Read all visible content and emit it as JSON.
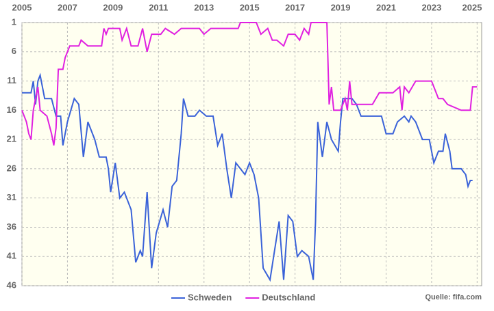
{
  "chart_data": {
    "type": "line",
    "y_inverted": true,
    "grid": true,
    "legend": "bottom",
    "source": "Quelle: fifa.com",
    "xlim": [
      2005,
      2025.2
    ],
    "xticks": [
      2005,
      2007,
      2009,
      2011,
      2013,
      2015,
      2017,
      2019,
      2021,
      2023,
      2025
    ],
    "ylim": [
      1,
      46
    ],
    "yticks": [
      1,
      6,
      11,
      16,
      21,
      26,
      31,
      36,
      41,
      46
    ],
    "series": [
      {
        "name": "Schweden",
        "color": "#3a62d8",
        "x": [
          2005.0,
          2005.4,
          2005.5,
          2005.6,
          2005.7,
          2005.8,
          2006.0,
          2006.3,
          2006.5,
          2006.7,
          2006.8,
          2007.0,
          2007.3,
          2007.5,
          2007.7,
          2007.9,
          2008.2,
          2008.4,
          2008.7,
          2008.8,
          2008.9,
          2009.1,
          2009.3,
          2009.5,
          2009.8,
          2010.0,
          2010.2,
          2010.3,
          2010.5,
          2010.7,
          2010.9,
          2011.2,
          2011.4,
          2011.6,
          2011.8,
          2012.0,
          2012.1,
          2012.3,
          2012.6,
          2012.8,
          2013.1,
          2013.4,
          2013.6,
          2013.8,
          2014.0,
          2014.2,
          2014.4,
          2014.6,
          2014.8,
          2015.0,
          2015.2,
          2015.4,
          2015.6,
          2015.9,
          2016.1,
          2016.3,
          2016.5,
          2016.7,
          2016.9,
          2017.1,
          2017.3,
          2017.6,
          2017.8,
          2017.9,
          2018.0,
          2018.2,
          2018.4,
          2018.6,
          2018.9,
          2019.0,
          2019.1,
          2019.5,
          2019.7,
          2019.9,
          2020.3,
          2020.8,
          2021.0,
          2021.3,
          2021.5,
          2021.8,
          2022.0,
          2022.1,
          2022.3,
          2022.6,
          2022.9,
          2023.1,
          2023.3,
          2023.5,
          2023.6,
          2023.8,
          2023.9,
          2024.3,
          2024.5,
          2024.6,
          2024.7,
          2024.8
        ],
        "values": [
          13,
          13,
          11,
          15,
          11,
          10,
          14,
          14,
          17,
          17,
          22,
          18,
          14,
          15,
          24,
          18,
          21,
          24,
          24,
          26,
          30,
          25,
          31,
          30,
          33,
          42,
          40,
          41,
          30,
          43,
          37,
          33,
          36,
          29,
          28,
          20,
          14,
          17,
          17,
          16,
          17,
          17,
          22,
          20,
          26,
          31,
          25,
          26,
          27,
          25,
          27,
          31,
          43,
          45,
          40,
          35,
          45,
          34,
          35,
          41,
          40,
          41,
          45,
          35,
          18,
          24,
          18,
          21,
          23,
          18,
          14,
          14,
          15,
          17,
          17,
          17,
          20,
          20,
          18,
          17,
          18,
          17,
          18,
          21,
          21,
          25,
          23,
          23,
          20,
          23,
          26,
          26,
          27,
          29,
          28,
          28
        ]
      },
      {
        "name": "Deutschland",
        "color": "#e020e0",
        "x": [
          2005.0,
          2005.2,
          2005.3,
          2005.4,
          2005.5,
          2005.7,
          2005.8,
          2006.1,
          2006.3,
          2006.4,
          2006.5,
          2006.6,
          2006.8,
          2006.9,
          2007.1,
          2007.5,
          2007.6,
          2007.9,
          2008.5,
          2008.6,
          2008.7,
          2008.8,
          2009.3,
          2009.4,
          2009.6,
          2009.8,
          2010.1,
          2010.3,
          2010.5,
          2010.7,
          2011.1,
          2011.3,
          2011.7,
          2012.0,
          2012.8,
          2013.0,
          2013.3,
          2014.5,
          2014.6,
          2015.3,
          2015.5,
          2015.8,
          2016.0,
          2016.2,
          2016.5,
          2016.7,
          2017.0,
          2017.2,
          2017.4,
          2017.6,
          2017.7,
          2018.4,
          2018.5,
          2018.6,
          2018.7,
          2019.0,
          2019.2,
          2019.3,
          2019.4,
          2019.5,
          2020.4,
          2020.7,
          2021.3,
          2021.6,
          2021.7,
          2021.8,
          2022.0,
          2022.3,
          2022.6,
          2023.0,
          2023.3,
          2023.5,
          2023.7,
          2024.3,
          2024.5,
          2024.7,
          2024.8,
          2025.0
        ],
        "values": [
          16,
          18,
          20,
          21,
          16,
          12,
          16,
          17,
          20,
          22,
          19,
          9,
          9,
          7,
          5,
          5,
          4,
          5,
          5,
          2,
          3,
          2,
          2,
          4,
          2,
          5,
          5,
          2,
          6,
          3,
          3,
          2,
          3,
          2,
          2,
          3,
          2,
          2,
          1,
          1,
          3,
          2,
          4,
          4,
          5,
          3,
          3,
          4,
          2,
          3,
          1,
          1,
          15,
          12,
          16,
          16,
          14,
          16,
          11,
          15,
          15,
          13,
          13,
          12,
          16,
          12,
          13,
          11,
          11,
          11,
          14,
          14,
          15,
          16,
          16,
          16,
          12,
          12
        ]
      }
    ]
  }
}
